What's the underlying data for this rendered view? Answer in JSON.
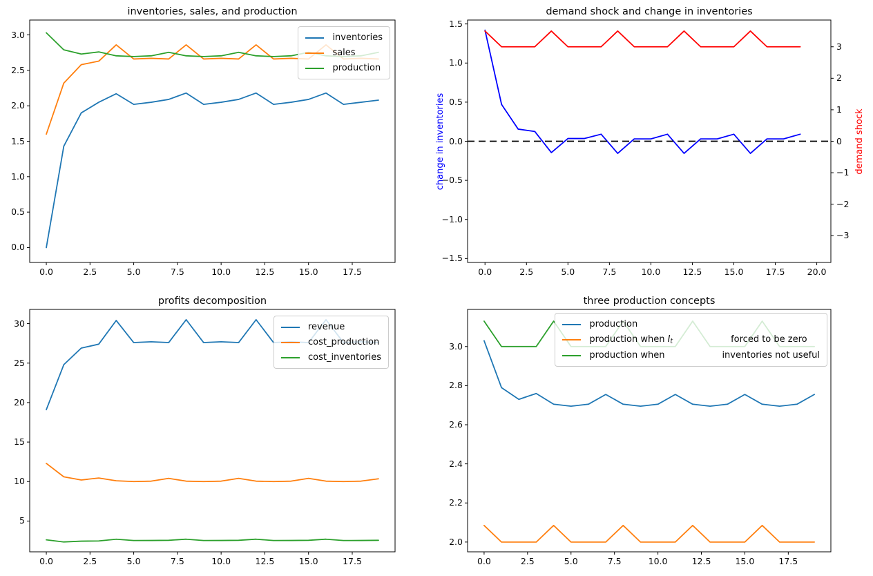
{
  "figure": {
    "background": "#ffffff",
    "text_color": "#0a0a0a",
    "spine_color": "#000000"
  },
  "chart_data": [
    {
      "id": "tl",
      "type": "line",
      "title": "inventories, sales, and production",
      "xlim": [
        -0.95,
        19.95
      ],
      "ylim": [
        -0.21,
        3.21
      ],
      "x": [
        0,
        1,
        2,
        3,
        4,
        5,
        6,
        7,
        8,
        9,
        10,
        11,
        12,
        13,
        14,
        15,
        16,
        17,
        18,
        19
      ],
      "xticks": {
        "values": [
          0,
          2.5,
          5,
          7.5,
          10,
          12.5,
          15,
          17.5
        ],
        "labels": [
          "0.0",
          "2.5",
          "5.0",
          "7.5",
          "10.0",
          "12.5",
          "15.0",
          "17.5"
        ]
      },
      "yticks": {
        "values": [
          0,
          0.5,
          1,
          1.5,
          2,
          2.5,
          3
        ],
        "labels": [
          "0.0",
          "0.5",
          "1.0",
          "1.5",
          "2.0",
          "2.5",
          "3.0"
        ]
      },
      "series": [
        {
          "name": "inventories",
          "color": "#1f77b4",
          "values": [
            0.0,
            1.43,
            1.9,
            2.05,
            2.17,
            2.02,
            2.05,
            2.09,
            2.18,
            2.02,
            2.05,
            2.09,
            2.18,
            2.02,
            2.05,
            2.09,
            2.18,
            2.02,
            2.05,
            2.08
          ]
        },
        {
          "name": "sales",
          "color": "#ff7f0e",
          "values": [
            1.6,
            2.32,
            2.58,
            2.63,
            2.86,
            2.66,
            2.67,
            2.66,
            2.86,
            2.66,
            2.67,
            2.66,
            2.86,
            2.66,
            2.67,
            2.66,
            2.86,
            2.66,
            2.67,
            2.66
          ]
        },
        {
          "name": "production",
          "color": "#2ca02c",
          "values": [
            3.03,
            2.79,
            2.73,
            2.76,
            2.705,
            2.695,
            2.705,
            2.755,
            2.705,
            2.695,
            2.705,
            2.755,
            2.705,
            2.695,
            2.705,
            2.755,
            2.705,
            2.695,
            2.705,
            2.755
          ]
        }
      ],
      "legend": {
        "items": [
          {
            "color": "#1f77b4",
            "segments": [
              {
                "text": "inventories",
                "style": "plain"
              }
            ]
          },
          {
            "color": "#ff7f0e",
            "segments": [
              {
                "text": "sales",
                "style": "plain"
              }
            ]
          },
          {
            "color": "#2ca02c",
            "segments": [
              {
                "text": "production",
                "style": "plain"
              }
            ]
          }
        ]
      }
    },
    {
      "id": "tr",
      "type": "line",
      "title": "demand shock and change in inventories",
      "xlim": [
        -1.05,
        20.85
      ],
      "ylim": [
        -1.55,
        1.55
      ],
      "ylim_right": [
        -3.85,
        3.85
      ],
      "x": [
        0,
        1,
        2,
        3,
        4,
        5,
        6,
        7,
        8,
        9,
        10,
        11,
        12,
        13,
        14,
        15,
        16,
        17,
        18,
        19
      ],
      "xticks": {
        "values": [
          0,
          2.5,
          5,
          7.5,
          10,
          12.5,
          15,
          17.5,
          20
        ],
        "labels": [
          "0.0",
          "2.5",
          "5.0",
          "7.5",
          "10.0",
          "12.5",
          "15.0",
          "17.5",
          "20.0"
        ]
      },
      "yticks": {
        "values": [
          -1.5,
          -1,
          -0.5,
          0,
          0.5,
          1,
          1.5
        ],
        "labels": [
          "−1.5",
          "−1.0",
          "−0.5",
          "0.0",
          "0.5",
          "1.0",
          "1.5"
        ]
      },
      "yticks_right": {
        "values": [
          -3,
          -2,
          -1,
          0,
          1,
          2,
          3
        ],
        "labels": [
          "−3",
          "−2",
          "−1",
          "0",
          "1",
          "2",
          "3"
        ]
      },
      "ylabel_left": {
        "text": "change in inventories",
        "color": "#0000ff"
      },
      "ylabel_right": {
        "text": "demand shock",
        "color": "#ff0000"
      },
      "series": [
        {
          "name": "change in inventories",
          "color": "#0000ff",
          "axis": "left",
          "values": [
            1.42,
            0.47,
            0.155,
            0.125,
            -0.145,
            0.035,
            0.035,
            0.09,
            -0.155,
            0.03,
            0.03,
            0.09,
            -0.155,
            0.03,
            0.03,
            0.09,
            -0.155,
            0.03,
            0.03,
            0.09
          ]
        },
        {
          "name": "demand shock",
          "color": "#ff0000",
          "axis": "right",
          "values": [
            3.5,
            3,
            3,
            3,
            3.5,
            3,
            3,
            3,
            3.5,
            3,
            3,
            3,
            3.5,
            3,
            3,
            3,
            3.5,
            3,
            3,
            3
          ]
        },
        {
          "name": "zero line",
          "type": "hline",
          "y": 0,
          "color": "#000000",
          "dash": true
        }
      ]
    },
    {
      "id": "bl",
      "type": "line",
      "title": "profits decomposition",
      "xlim": [
        -0.95,
        19.95
      ],
      "ylim": [
        1.1,
        31.8
      ],
      "x": [
        0,
        1,
        2,
        3,
        4,
        5,
        6,
        7,
        8,
        9,
        10,
        11,
        12,
        13,
        14,
        15,
        16,
        17,
        18,
        19
      ],
      "xticks": {
        "values": [
          0,
          2.5,
          5,
          7.5,
          10,
          12.5,
          15,
          17.5
        ],
        "labels": [
          "0.0",
          "2.5",
          "5.0",
          "7.5",
          "10.0",
          "12.5",
          "15.0",
          "17.5"
        ]
      },
      "yticks": {
        "values": [
          5,
          10,
          15,
          20,
          25,
          30
        ],
        "labels": [
          "5",
          "10",
          "15",
          "20",
          "25",
          "30"
        ]
      },
      "series": [
        {
          "name": "revenue",
          "color": "#1f77b4",
          "values": [
            19.1,
            24.8,
            26.9,
            27.4,
            30.4,
            27.6,
            27.7,
            27.6,
            30.5,
            27.6,
            27.7,
            27.6,
            30.5,
            27.6,
            27.7,
            27.6,
            30.5,
            27.6,
            27.7,
            27.6
          ]
        },
        {
          "name": "cost_production",
          "color": "#ff7f0e",
          "values": [
            12.3,
            10.6,
            10.2,
            10.45,
            10.1,
            10.0,
            10.05,
            10.4,
            10.05,
            10.0,
            10.05,
            10.4,
            10.05,
            10.0,
            10.05,
            10.4,
            10.05,
            10.0,
            10.05,
            10.35
          ]
        },
        {
          "name": "cost_inventories",
          "color": "#2ca02c",
          "values": [
            2.62,
            2.35,
            2.45,
            2.48,
            2.7,
            2.53,
            2.54,
            2.56,
            2.7,
            2.53,
            2.54,
            2.56,
            2.7,
            2.53,
            2.54,
            2.56,
            2.7,
            2.53,
            2.54,
            2.56
          ]
        }
      ],
      "legend": {
        "items": [
          {
            "color": "#1f77b4",
            "segments": [
              {
                "text": "revenue",
                "style": "plain"
              }
            ]
          },
          {
            "color": "#ff7f0e",
            "segments": [
              {
                "text": "cost_production",
                "style": "plain"
              }
            ]
          },
          {
            "color": "#2ca02c",
            "segments": [
              {
                "text": "cost_inventories",
                "style": "plain"
              }
            ]
          }
        ]
      }
    },
    {
      "id": "br",
      "type": "line",
      "title": "three production concepts",
      "xlim": [
        -0.95,
        19.95
      ],
      "ylim": [
        1.95,
        3.19
      ],
      "x": [
        0,
        1,
        2,
        3,
        4,
        5,
        6,
        7,
        8,
        9,
        10,
        11,
        12,
        13,
        14,
        15,
        16,
        17,
        18,
        19
      ],
      "xticks": {
        "values": [
          0,
          2.5,
          5,
          7.5,
          10,
          12.5,
          15,
          17.5
        ],
        "labels": [
          "0.0",
          "2.5",
          "5.0",
          "7.5",
          "10.0",
          "12.5",
          "15.0",
          "17.5"
        ]
      },
      "yticks": {
        "values": [
          2,
          2.2,
          2.4,
          2.6,
          2.8,
          3
        ],
        "labels": [
          "2.0",
          "2.2",
          "2.4",
          "2.6",
          "2.8",
          "3.0"
        ]
      },
      "series": [
        {
          "name": "production",
          "color": "#1f77b4",
          "values": [
            3.03,
            2.79,
            2.73,
            2.76,
            2.705,
            2.695,
            2.705,
            2.755,
            2.705,
            2.695,
            2.705,
            2.755,
            2.705,
            2.695,
            2.705,
            2.755,
            2.705,
            2.695,
            2.705,
            2.755
          ]
        },
        {
          "name": "production when I_t forced to be zero",
          "color": "#ff7f0e",
          "values": [
            2.085,
            2.0,
            2.0,
            2.0,
            2.085,
            2.0,
            2.0,
            2.0,
            2.085,
            2.0,
            2.0,
            2.0,
            2.085,
            2.0,
            2.0,
            2.0,
            2.085,
            2.0,
            2.0,
            2.0
          ]
        },
        {
          "name": "production when inventories not useful",
          "color": "#2ca02c",
          "values": [
            3.13,
            3.0,
            3.0,
            3.0,
            3.13,
            3.0,
            3.0,
            3.0,
            3.13,
            3.0,
            3.0,
            3.0,
            3.13,
            3.0,
            3.0,
            3.0,
            3.13,
            3.0,
            3.0,
            3.0
          ]
        }
      ],
      "legend": {
        "items": [
          {
            "color": "#1f77b4",
            "segments": [
              {
                "text": "production",
                "style": "plain"
              }
            ]
          },
          {
            "color": "#ff7f0e",
            "segments": [
              {
                "text": "production when ",
                "style": "plain"
              },
              {
                "text": "I",
                "style": "math"
              },
              {
                "text": "t",
                "style": "msub"
              },
              {
                "text": "",
                "style": "gap",
                "width": 84
              },
              {
                "text": "forced to be zero",
                "style": "plain"
              }
            ]
          },
          {
            "color": "#2ca02c",
            "segments": [
              {
                "text": "production when",
                "style": "plain"
              },
              {
                "text": "",
                "style": "gap",
                "width": 83
              },
              {
                "text": "inventories not useful",
                "style": "plain"
              }
            ]
          }
        ]
      }
    }
  ]
}
